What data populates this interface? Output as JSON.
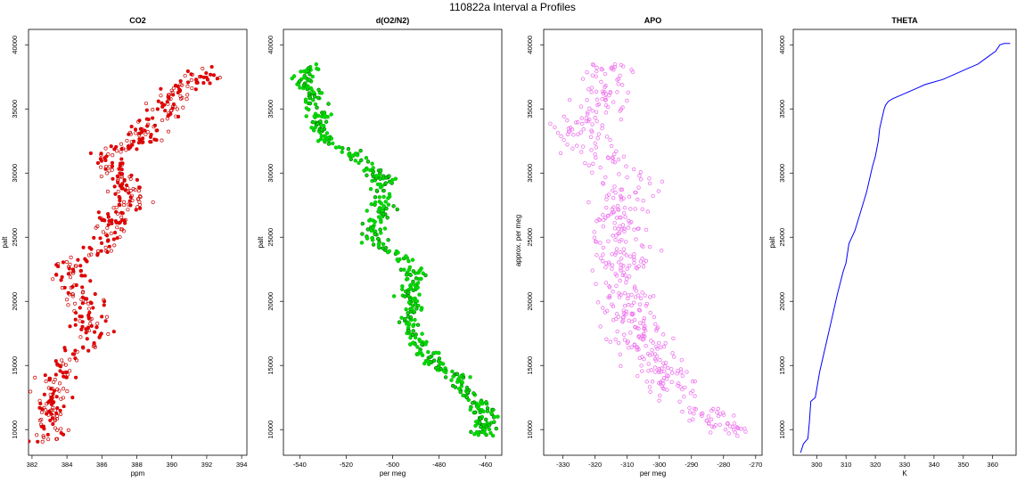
{
  "figure": {
    "title": "110822a   Interval a Profiles"
  },
  "chart_data": [
    {
      "type": "scatter",
      "title": "CO2",
      "xlabel": "ppm",
      "ylabel": "palt",
      "xlim": [
        381.8,
        394.3
      ],
      "ylim": [
        8000,
        41200
      ],
      "xticks": [
        382,
        384,
        386,
        388,
        390,
        392,
        394
      ],
      "yticks": [
        10000,
        15000,
        20000,
        25000,
        30000,
        35000,
        40000
      ],
      "color": "#e00000",
      "marker": "small circles (dense clusters)",
      "profile": [
        [
          382.7,
          9000
        ],
        [
          383.0,
          10000
        ],
        [
          383.2,
          11000
        ],
        [
          382.9,
          12000
        ],
        [
          383.3,
          13000
        ],
        [
          383.4,
          14000
        ],
        [
          383.6,
          15000
        ],
        [
          384.3,
          16000
        ],
        [
          385.2,
          16800
        ],
        [
          385.4,
          17500
        ],
        [
          385.1,
          18000
        ],
        [
          385.4,
          19000
        ],
        [
          385.0,
          20000
        ],
        [
          384.4,
          21000
        ],
        [
          384.3,
          22000
        ],
        [
          384.4,
          23000
        ],
        [
          386.0,
          23800
        ],
        [
          386.3,
          24500
        ],
        [
          386.3,
          25500
        ],
        [
          386.6,
          26500
        ],
        [
          387.6,
          27500
        ],
        [
          387.6,
          28500
        ],
        [
          387.3,
          29500
        ],
        [
          386.7,
          30500
        ],
        [
          386.1,
          31500
        ],
        [
          388.4,
          32500
        ],
        [
          388.5,
          33500
        ],
        [
          389.7,
          34500
        ],
        [
          389.8,
          35500
        ],
        [
          390.3,
          36500
        ],
        [
          391.7,
          37500
        ],
        [
          391.8,
          38300
        ]
      ],
      "spread": 0.55
    },
    {
      "type": "scatter",
      "title": "d(O2/N2)",
      "xlabel": "per meg",
      "ylabel": "palt",
      "xlim": [
        -547,
        -453
      ],
      "ylim": [
        8000,
        41200
      ],
      "xticks": [
        -540,
        -520,
        -500,
        -480,
        -460
      ],
      "yticks": [
        10000,
        15000,
        20000,
        25000,
        30000,
        35000,
        40000
      ],
      "color": "#00dd00",
      "marker": "filled circles with dark outline",
      "profile": [
        [
          -461,
          9500
        ],
        [
          -459,
          10500
        ],
        [
          -461,
          11500
        ],
        [
          -466,
          12500
        ],
        [
          -471,
          13500
        ],
        [
          -472,
          14200
        ],
        [
          -482,
          15200
        ],
        [
          -488,
          16500
        ],
        [
          -492,
          17500
        ],
        [
          -492,
          18500
        ],
        [
          -492,
          19500
        ],
        [
          -494,
          20500
        ],
        [
          -491,
          21500
        ],
        [
          -492,
          22500
        ],
        [
          -496,
          23500
        ],
        [
          -508,
          24500
        ],
        [
          -508,
          25500
        ],
        [
          -506,
          26500
        ],
        [
          -505,
          27500
        ],
        [
          -505,
          28500
        ],
        [
          -503,
          29500
        ],
        [
          -511,
          30500
        ],
        [
          -517,
          31500
        ],
        [
          -527,
          32500
        ],
        [
          -531,
          33500
        ],
        [
          -531,
          34500
        ],
        [
          -533,
          35500
        ],
        [
          -535,
          36500
        ],
        [
          -539,
          37500
        ],
        [
          -535,
          38500
        ]
      ],
      "spread": 2.5
    },
    {
      "type": "scatter",
      "title": "APO",
      "xlabel": "per meg",
      "ylabel": "approx. per meg",
      "xlim": [
        -336,
        -268
      ],
      "ylim": [
        8000,
        41200
      ],
      "xticks": [
        -330,
        -320,
        -310,
        -300,
        -290,
        -280,
        -270
      ],
      "yticks": [
        10000,
        15000,
        20000,
        25000,
        30000,
        35000,
        40000
      ],
      "color": "#ee77ee",
      "marker": "hollow circles",
      "profile": [
        [
          -275,
          9500
        ],
        [
          -283,
          10500
        ],
        [
          -287,
          11500
        ],
        [
          -293,
          12500
        ],
        [
          -297,
          13500
        ],
        [
          -299,
          14500
        ],
        [
          -302,
          15500
        ],
        [
          -305,
          16500
        ],
        [
          -306,
          17500
        ],
        [
          -308,
          18500
        ],
        [
          -309,
          19500
        ],
        [
          -309,
          20500
        ],
        [
          -311,
          21500
        ],
        [
          -313,
          22500
        ],
        [
          -312,
          23500
        ],
        [
          -312,
          24500
        ],
        [
          -311,
          25500
        ],
        [
          -313,
          26500
        ],
        [
          -312,
          27500
        ],
        [
          -311,
          28500
        ],
        [
          -312,
          29500
        ],
        [
          -313,
          30500
        ],
        [
          -320,
          31500
        ],
        [
          -322,
          32500
        ],
        [
          -325,
          33500
        ],
        [
          -322,
          34500
        ],
        [
          -317,
          35500
        ],
        [
          -316,
          36500
        ],
        [
          -316,
          37500
        ],
        [
          -316,
          38500
        ]
      ],
      "spread": 4.5
    },
    {
      "type": "line",
      "title": "THETA",
      "xlabel": "K",
      "ylabel": "palt",
      "xlim": [
        292,
        368
      ],
      "ylim": [
        8000,
        41200
      ],
      "xticks": [
        300,
        310,
        320,
        330,
        340,
        350,
        360
      ],
      "yticks": [
        10000,
        15000,
        20000,
        25000,
        30000,
        35000,
        40000
      ],
      "color": "#0000ff",
      "x": [
        294.5,
        295.5,
        297,
        297.5,
        298,
        299.5,
        301,
        303,
        305,
        307,
        309,
        310,
        311,
        313,
        315,
        317,
        318,
        319,
        320,
        321,
        321.5,
        322.5,
        323,
        323.5,
        324.5,
        326,
        329,
        333,
        337,
        340,
        343,
        347,
        351,
        355,
        358,
        361,
        362.5,
        364,
        366
      ],
      "y": [
        8200,
        8900,
        9300,
        10600,
        12200,
        12500,
        14500,
        16500,
        18500,
        20500,
        22300,
        23000,
        24500,
        25500,
        27000,
        28500,
        29500,
        30500,
        31300,
        32500,
        33500,
        34500,
        35000,
        35300,
        35600,
        35800,
        36100,
        36500,
        36900,
        37100,
        37300,
        37700,
        38100,
        38500,
        39000,
        39500,
        40000,
        40100,
        40100
      ]
    }
  ]
}
